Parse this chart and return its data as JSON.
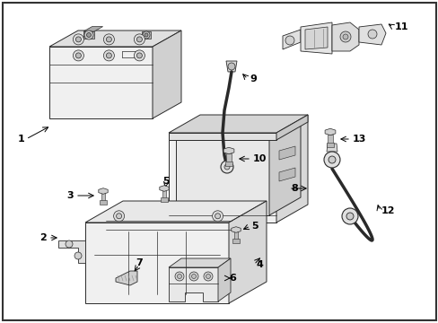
{
  "bg_color": "#ffffff",
  "border_color": "#cccccc",
  "line_color": "#333333",
  "fig_width": 4.89,
  "fig_height": 3.6,
  "dpi": 100,
  "label_fontsize": 8,
  "arrow_lw": 0.7,
  "part_line_color": "#2a2a2a",
  "part_fill_light": "#f5f5f5",
  "part_fill_mid": "#e8e8e8",
  "part_fill_dark": "#d8d8d8"
}
